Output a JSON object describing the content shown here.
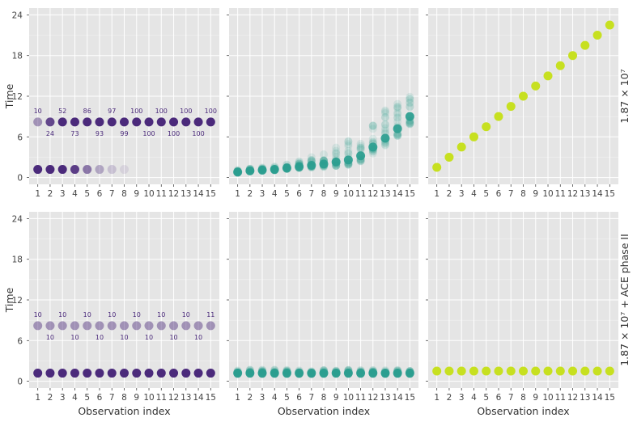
{
  "figure": {
    "colors": {
      "panel_bg": "#e5e5e5",
      "grid": "#ffffff",
      "tick_text": "#444444",
      "label_text": "#333333",
      "purple": "#4b2a7b",
      "teal": "#2a9d8f",
      "lime": "#c7e020"
    },
    "ylabel": "Time",
    "xlabel": "Observation index",
    "row_labels": [
      "1.87 × 10⁷",
      "1.87 × 10⁷ + ACE phase II"
    ]
  },
  "chart_data": [
    {
      "type": "scatter",
      "panel": "row1-col1",
      "x": [
        1,
        2,
        3,
        4,
        5,
        6,
        7,
        8,
        9,
        10,
        11,
        12,
        13,
        14,
        15
      ],
      "xlim": [
        0.3,
        15.7
      ],
      "ylim": [
        -1,
        25
      ],
      "yticks": [
        0,
        6,
        12,
        18,
        24
      ],
      "grid": true,
      "series": [
        {
          "values": [
            8.2,
            8.2,
            8.2,
            8.2,
            8.2,
            8.2,
            8.2,
            8.2,
            8.2,
            8.2,
            8.2,
            8.2,
            8.2,
            8.2,
            8.2
          ],
          "opacity": [
            0.45,
            0.85,
            1,
            1,
            1,
            1,
            1,
            1,
            1,
            1,
            1,
            1,
            1,
            1,
            1
          ]
        },
        {
          "values": [
            1.2,
            1.2,
            1.2,
            1.2,
            1.2,
            1.2,
            1.2,
            1.2,
            null,
            null,
            null,
            null,
            null,
            null,
            null
          ],
          "opacity": [
            1,
            1,
            1,
            0.9,
            0.6,
            0.35,
            0.2,
            0.1,
            0,
            0,
            0,
            0,
            0,
            0,
            0
          ]
        }
      ],
      "annotations": [
        "10",
        "24",
        "52",
        "73",
        "86",
        "93",
        "97",
        "99",
        "100",
        "100",
        "100",
        "100",
        "100",
        "100",
        "100"
      ]
    },
    {
      "type": "scatter",
      "panel": "row1-col2",
      "x": [
        1,
        2,
        3,
        4,
        5,
        6,
        7,
        8,
        9,
        10,
        11,
        12,
        13,
        14,
        15
      ],
      "xlim": [
        0.3,
        15.7
      ],
      "ylim": [
        -1,
        25
      ],
      "yticks": [
        0,
        6,
        12,
        18,
        24
      ],
      "grid": true,
      "series": [
        {
          "values": [
            0.8,
            1.0,
            1.1,
            1.2,
            1.4,
            1.6,
            1.8,
            2.0,
            2.3,
            2.6,
            3.2,
            4.5,
            5.8,
            7.2,
            9.0
          ],
          "spread": [
            0.3,
            0.4,
            0.4,
            0.5,
            0.6,
            0.8,
            1.2,
            1.8,
            2.3,
            2.9,
            3.2,
            3.8,
            4.2,
            4.2,
            4.5
          ]
        }
      ]
    },
    {
      "type": "scatter",
      "panel": "row1-col3",
      "x": [
        1,
        2,
        3,
        4,
        5,
        6,
        7,
        8,
        9,
        10,
        11,
        12,
        13,
        14,
        15
      ],
      "xlim": [
        0.3,
        15.7
      ],
      "ylim": [
        -1,
        25
      ],
      "yticks": [
        0,
        6,
        12,
        18,
        24
      ],
      "grid": true,
      "series": [
        {
          "values": [
            1.5,
            3.0,
            4.5,
            6.0,
            7.5,
            9.0,
            10.5,
            12.0,
            13.5,
            15.0,
            16.5,
            18.0,
            19.5,
            21.0,
            22.5
          ]
        }
      ]
    },
    {
      "type": "scatter",
      "panel": "row2-col1",
      "x": [
        1,
        2,
        3,
        4,
        5,
        6,
        7,
        8,
        9,
        10,
        11,
        12,
        13,
        14,
        15
      ],
      "xlim": [
        0.3,
        15.7
      ],
      "ylim": [
        -1,
        25
      ],
      "yticks": [
        0,
        6,
        12,
        18,
        24
      ],
      "grid": true,
      "series": [
        {
          "values": [
            8.2,
            8.2,
            8.2,
            8.2,
            8.2,
            8.2,
            8.2,
            8.2,
            8.2,
            8.2,
            8.2,
            8.2,
            8.2,
            8.2,
            8.2
          ],
          "opacity": [
            0.45,
            0.45,
            0.45,
            0.45,
            0.45,
            0.45,
            0.45,
            0.45,
            0.45,
            0.45,
            0.45,
            0.45,
            0.45,
            0.45,
            0.45
          ]
        },
        {
          "values": [
            1.2,
            1.2,
            1.2,
            1.2,
            1.2,
            1.2,
            1.2,
            1.2,
            1.2,
            1.2,
            1.2,
            1.2,
            1.2,
            1.2,
            1.2
          ],
          "opacity": [
            1,
            1,
            1,
            1,
            1,
            1,
            1,
            1,
            1,
            1,
            1,
            1,
            1,
            1,
            1
          ]
        }
      ],
      "annotations": [
        "10",
        "10",
        "10",
        "10",
        "10",
        "10",
        "10",
        "10",
        "10",
        "10",
        "10",
        "10",
        "10",
        "10",
        "11"
      ]
    },
    {
      "type": "scatter",
      "panel": "row2-col2",
      "x": [
        1,
        2,
        3,
        4,
        5,
        6,
        7,
        8,
        9,
        10,
        11,
        12,
        13,
        14,
        15
      ],
      "xlim": [
        0.3,
        15.7
      ],
      "ylim": [
        -1,
        25
      ],
      "yticks": [
        0,
        6,
        12,
        18,
        24
      ],
      "grid": true,
      "series": [
        {
          "values": [
            1.2,
            1.2,
            1.2,
            1.2,
            1.2,
            1.2,
            1.2,
            1.2,
            1.2,
            1.2,
            1.2,
            1.2,
            1.2,
            1.2,
            1.2
          ],
          "spread": [
            0.5,
            0.5,
            0.5,
            0.5,
            0.5,
            0.5,
            0.5,
            0.5,
            0.5,
            0.5,
            0.5,
            0.5,
            0.5,
            0.5,
            0.5
          ]
        }
      ]
    },
    {
      "type": "scatter",
      "panel": "row2-col3",
      "x": [
        1,
        2,
        3,
        4,
        5,
        6,
        7,
        8,
        9,
        10,
        11,
        12,
        13,
        14,
        15
      ],
      "xlim": [
        0.3,
        15.7
      ],
      "ylim": [
        -1,
        25
      ],
      "yticks": [
        0,
        6,
        12,
        18,
        24
      ],
      "grid": true,
      "series": [
        {
          "values": [
            1.5,
            1.5,
            1.5,
            1.5,
            1.5,
            1.5,
            1.5,
            1.5,
            1.5,
            1.5,
            1.5,
            1.5,
            1.5,
            1.5,
            1.5
          ]
        }
      ]
    }
  ]
}
